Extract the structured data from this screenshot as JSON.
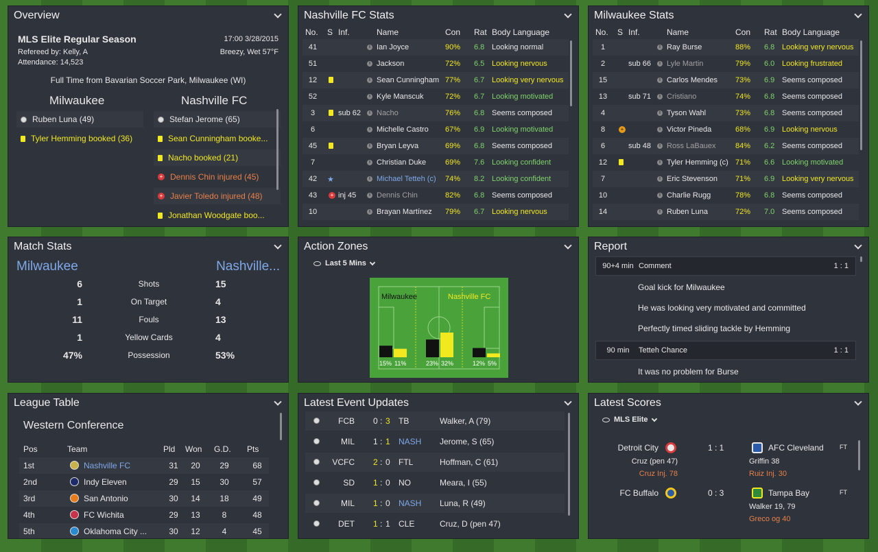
{
  "overview": {
    "title": "Overview",
    "competition": "MLS Elite Regular Season",
    "datetime": "17:00 3/28/2015",
    "referee": "Refereed by: Kelly, A",
    "weather": "Breezy, Wet 57°F",
    "attendance": "Attendance: 14,523",
    "fulltime": "Full Time from Bavarian Soccer Park, Milwaukee (WI)",
    "home": "Milwaukee",
    "away": "Nashville FC",
    "home_events": [
      {
        "t": "Ruben Luna (49)",
        "k": "goal"
      },
      {
        "t": "Tyler Hemming booked (36)",
        "k": "card"
      }
    ],
    "away_events": [
      {
        "t": "Stefan Jerome (65)",
        "k": "goal"
      },
      {
        "t": "Sean Cunningham booke...",
        "k": "card"
      },
      {
        "t": "Nacho booked (21)",
        "k": "card"
      },
      {
        "t": "Dennis Chin injured (45)",
        "k": "inj"
      },
      {
        "t": "Javier Toledo injured (48)",
        "k": "inj"
      },
      {
        "t": "Jonathan Woodgate boo...",
        "k": "card"
      }
    ]
  },
  "nash_stats": {
    "title": "Nashville FC Stats",
    "headers": [
      "No.",
      "S",
      "Inf.",
      "Name",
      "Con",
      "Rat",
      "Body Language"
    ],
    "rows": [
      [
        "41",
        "",
        "",
        "Ian Joyce",
        "90%",
        "6.8",
        "Looking normal",
        "w"
      ],
      [
        "51",
        "",
        "",
        "Jackson",
        "72%",
        "6.5",
        "Looking nervous",
        "y"
      ],
      [
        "12",
        "card",
        "",
        "Sean Cunningham",
        "77%",
        "6.7",
        "Looking very nervous",
        "y"
      ],
      [
        "52",
        "",
        "",
        "Kyle Manscuk",
        "72%",
        "6.7",
        "Looking motivated",
        "g"
      ],
      [
        "3",
        "card",
        "sub 62",
        "Nacho",
        "76%",
        "6.8",
        "Seems composed",
        "w"
      ],
      [
        "6",
        "",
        "",
        "Michelle Castro",
        "67%",
        "6.9",
        "Looking motivated",
        "g"
      ],
      [
        "45",
        "card",
        "",
        "Bryan Leyva",
        "69%",
        "6.8",
        "Seems composed",
        "w"
      ],
      [
        "7",
        "",
        "",
        "Christian Duke",
        "69%",
        "7.6",
        "Looking confident",
        "g"
      ],
      [
        "42",
        "star",
        "",
        "Michael Tetteh (c)",
        "74%",
        "8.2",
        "Looking confident",
        "g"
      ],
      [
        "43",
        "inj",
        "inj 45",
        "Dennis Chin",
        "82%",
        "6.8",
        "Seems composed",
        "w"
      ],
      [
        "10",
        "",
        "",
        "Brayan Martínez",
        "79%",
        "6.7",
        "Looking nervous",
        "y"
      ]
    ]
  },
  "mil_stats": {
    "title": "Milwaukee Stats",
    "headers": [
      "No.",
      "S",
      "Inf.",
      "Name",
      "Con",
      "Rat",
      "Body Language"
    ],
    "rows": [
      [
        "1",
        "",
        "",
        "Ray Burse",
        "88%",
        "6.8",
        "Looking very nervous",
        "y"
      ],
      [
        "2",
        "",
        "sub 66",
        "Lyle Martin",
        "79%",
        "6.0",
        "Looking frustrated",
        "y"
      ],
      [
        "15",
        "",
        "",
        "Carlos Mendes",
        "73%",
        "6.9",
        "Seems composed",
        "w"
      ],
      [
        "13",
        "",
        "sub 71",
        "Cristiano",
        "74%",
        "6.8",
        "Seems composed",
        "w"
      ],
      [
        "4",
        "",
        "",
        "Tyson Wahl",
        "73%",
        "6.8",
        "Seems composed",
        "w"
      ],
      [
        "8",
        "plus",
        "",
        "Victor Pineda",
        "68%",
        "6.9",
        "Looking nervous",
        "y"
      ],
      [
        "6",
        "",
        "sub 48",
        "Ross LaBauex",
        "84%",
        "6.2",
        "Seems composed",
        "w"
      ],
      [
        "12",
        "card",
        "",
        "Tyler Hemming (c)",
        "71%",
        "6.6",
        "Looking motivated",
        "g"
      ],
      [
        "7",
        "",
        "",
        "Eric Stevenson",
        "71%",
        "6.9",
        "Looking very nervous",
        "y"
      ],
      [
        "10",
        "",
        "",
        "Charlie Rugg",
        "78%",
        "6.8",
        "Seems composed",
        "w"
      ],
      [
        "14",
        "",
        "",
        "Ruben Luna",
        "72%",
        "7.0",
        "Seems composed",
        "w"
      ]
    ]
  },
  "match_stats": {
    "title": "Match Stats",
    "home": "Milwaukee",
    "away": "Nashville...",
    "rows": [
      [
        "6",
        "Shots",
        "15"
      ],
      [
        "1",
        "On Target",
        "4"
      ],
      [
        "11",
        "Fouls",
        "13"
      ],
      [
        "1",
        "Yellow Cards",
        "4"
      ],
      [
        "47%",
        "Possession",
        "53%"
      ]
    ]
  },
  "action_zones": {
    "title": "Action Zones",
    "filter": "Last 5 Mins",
    "home": "Milwaukee",
    "away": "Nashville FC",
    "zones": [
      {
        "home": 15,
        "away": 11,
        "hl": "15%",
        "al": "11%"
      },
      {
        "home": 23,
        "away": 32,
        "hl": "23%",
        "al": "32%"
      },
      {
        "home": 12,
        "away": 5,
        "hl": "12%",
        "al": "5%"
      }
    ]
  },
  "report": {
    "title": "Report",
    "items": [
      {
        "type": "head",
        "time": "90+4 min",
        "label": "Comment",
        "score": "1 : 1"
      },
      {
        "type": "text",
        "t": "Goal kick for Milwaukee"
      },
      {
        "type": "text",
        "t": "He was looking very motivated and committed"
      },
      {
        "type": "text",
        "t": "Perfectly timed sliding tackle by Hemming"
      },
      {
        "type": "head",
        "time": "90 min",
        "label": "Tetteh Chance",
        "score": "1 : 1"
      },
      {
        "type": "text",
        "t": "It was no problem for Burse"
      }
    ]
  },
  "league": {
    "title": "League Table",
    "conference": "Western Conference",
    "headers": [
      "Pos",
      "Team",
      "Pld",
      "Won",
      "G.D.",
      "Pts"
    ],
    "rows": [
      [
        "1st",
        "Nashville FC",
        "31",
        "20",
        "29",
        "68"
      ],
      [
        "2nd",
        "Indy Eleven",
        "29",
        "15",
        "30",
        "57"
      ],
      [
        "3rd",
        "San Antonio",
        "30",
        "14",
        "18",
        "49"
      ],
      [
        "4th",
        "FC Wichita",
        "29",
        "13",
        "8",
        "48"
      ],
      [
        "5th",
        "Oklahoma City ...",
        "30",
        "12",
        "4",
        "45"
      ]
    ]
  },
  "events": {
    "title": "Latest Event Updates",
    "rows": [
      [
        "FCB",
        "0",
        "3",
        "TB",
        "Walker, A (79)"
      ],
      [
        "MIL",
        "1",
        "1",
        "NASH",
        "Jerome, S (65)"
      ],
      [
        "VCFC",
        "2",
        "0",
        "FTL",
        "Hoffman, C (61)"
      ],
      [
        "SD",
        "1",
        "0",
        "NO",
        "Meara, I (55)"
      ],
      [
        "MIL",
        "1",
        "0",
        "NASH",
        "Luna, R (49)"
      ],
      [
        "DET",
        "1",
        "1",
        "CLE",
        "Cruz, D (pen 47)"
      ]
    ]
  },
  "scores": {
    "title": "Latest Scores",
    "filter": "MLS Elite",
    "matches": [
      {
        "home": "Detroit City",
        "score": "1 : 1",
        "away": "AFC Cleveland",
        "status": "FT",
        "hs": "Cruz (pen 47)",
        "hinj": "Cruz Inj. 78",
        "as": "Griffin 38",
        "ainj": "Ruiz Inj. 30"
      },
      {
        "home": "FC Buffalo",
        "score": "0 : 3",
        "away": "Tampa Bay",
        "status": "FT",
        "hs": "",
        "hinj": "",
        "as": "Walker 19, 79",
        "ainj": "Greco og 40"
      }
    ]
  },
  "colors": {
    "panel": "#2f333b",
    "yellow": "#f2e81f",
    "green": "#7fd36b",
    "blue": "#7fa8e8",
    "red": "#e8604a"
  }
}
